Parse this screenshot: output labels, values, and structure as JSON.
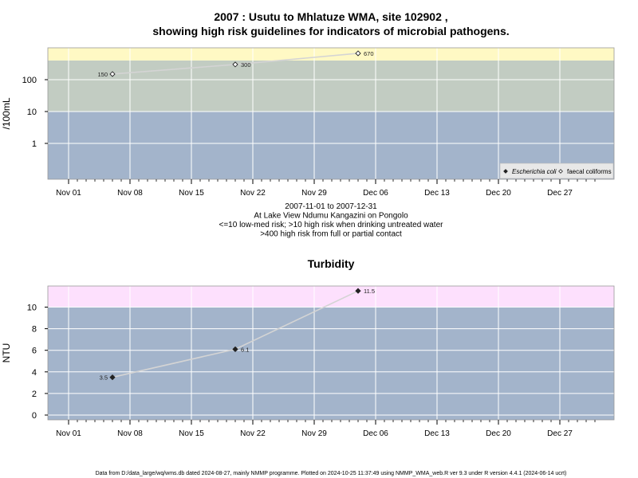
{
  "footer": "Data from D:/data_large/wq/wms.db dated 2024-08-27, mainly NMMP programme. Plotted on 2024-10-25 11:37:49 using NMMP_WMA_web.R ver 9.3 under R version 4.4.1 (2024-06-14 ucrt)",
  "colors": {
    "low_band": "#a3b4cb",
    "mid_band": "#c2ccc2",
    "high_band": "#fff9c4",
    "turb_high_band": "#fde0fd",
    "line": "#d4d4d4",
    "grid": "#ffffff"
  },
  "chart_data": [
    {
      "type": "scatter",
      "title_lines": [
        "2007 : Usutu to Mhlatuze WMA, site 102902 ,",
        "showing high risk guidelines for indicators of microbial pathogens."
      ],
      "ylabel": "/100mL",
      "y_scale": "log",
      "y_ticks": [
        1,
        10,
        100
      ],
      "y_tick_labels": [
        "1",
        "10",
        "100"
      ],
      "x_ticks": [
        "2007-11-01",
        "2007-11-08",
        "2007-11-15",
        "2007-11-22",
        "2007-11-29",
        "2007-12-06",
        "2007-12-13",
        "2007-12-20",
        "2007-12-27"
      ],
      "x_tick_labels": [
        "Nov 01",
        "Nov 08",
        "Nov 15",
        "Nov 22",
        "Nov 29",
        "Dec 06",
        "Dec 13",
        "Dec 20",
        "Dec 27"
      ],
      "caption_lines": [
        "2007-11-01 to 2007-12-31",
        "At Lake View Ndumu Kangazini on Pongolo",
        "<=10 low-med risk; >10 high risk when drinking untreated water",
        ">400 high risk from full or partial contact"
      ],
      "bands": [
        {
          "from": null,
          "to": 10,
          "color_key": "low_band"
        },
        {
          "from": 10,
          "to": 400,
          "color_key": "mid_band"
        },
        {
          "from": 400,
          "to": null,
          "color_key": "high_band"
        }
      ],
      "series": [
        {
          "name": "Escherichia coli",
          "marker": "filled-diamond",
          "points": []
        },
        {
          "name": "faecal coliforms",
          "marker": "open-diamond",
          "points": [
            {
              "x": "2007-11-06",
              "y": 150,
              "label": "150"
            },
            {
              "x": "2007-11-20",
              "y": 300,
              "label": "300"
            },
            {
              "x": "2007-12-04",
              "y": 670,
              "label": "670"
            }
          ]
        }
      ],
      "legend": "bottom-right",
      "grid": true
    },
    {
      "type": "scatter",
      "title_lines": [
        "Turbidity"
      ],
      "ylabel": "NTU",
      "y_scale": "linear",
      "y_ticks": [
        0,
        2,
        4,
        6,
        8,
        10
      ],
      "y_tick_labels": [
        "0",
        "2",
        "4",
        "6",
        "8",
        "10"
      ],
      "x_ticks": [
        "2007-11-01",
        "2007-11-08",
        "2007-11-15",
        "2007-11-22",
        "2007-11-29",
        "2007-12-06",
        "2007-12-13",
        "2007-12-20",
        "2007-12-27"
      ],
      "x_tick_labels": [
        "Nov 01",
        "Nov 08",
        "Nov 15",
        "Nov 22",
        "Nov 29",
        "Dec 06",
        "Dec 13",
        "Dec 20",
        "Dec 27"
      ],
      "bands": [
        {
          "from": null,
          "to": 10,
          "color_key": "low_band"
        },
        {
          "from": 10,
          "to": null,
          "color_key": "turb_high_band"
        }
      ],
      "series": [
        {
          "name": "Turbidity",
          "marker": "filled-diamond",
          "points": [
            {
              "x": "2007-11-06",
              "y": 3.5,
              "label": "3.5"
            },
            {
              "x": "2007-11-20",
              "y": 6.1,
              "label": "6.1"
            },
            {
              "x": "2007-12-04",
              "y": 11.5,
              "label": "11.5"
            }
          ]
        }
      ],
      "grid": true
    }
  ]
}
